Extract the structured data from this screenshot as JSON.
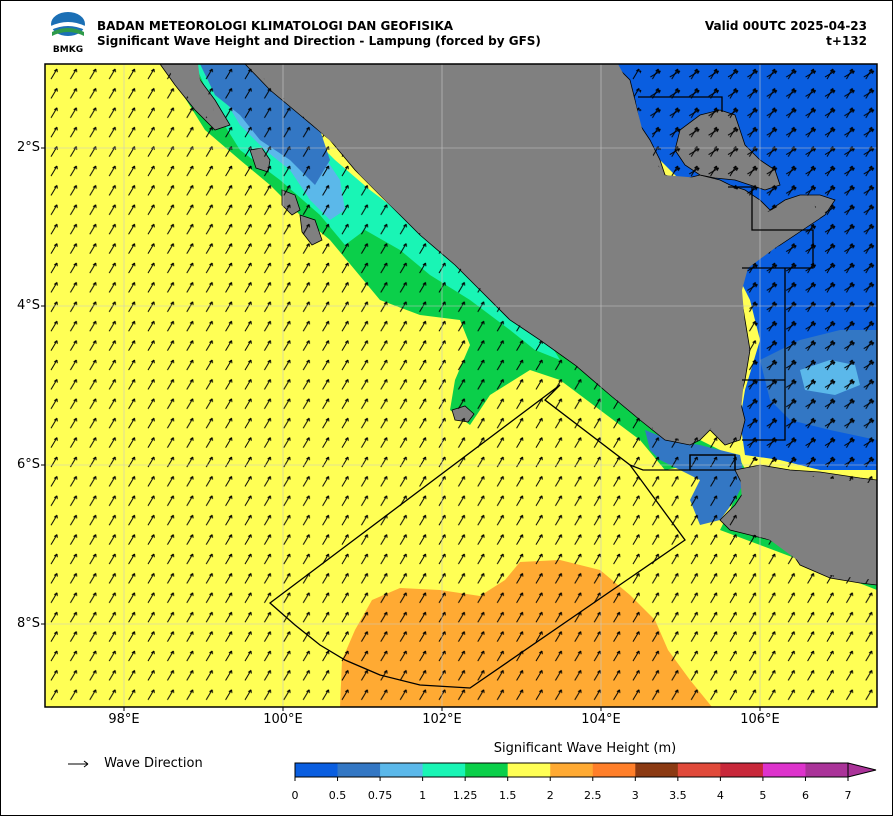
{
  "header": {
    "agency": "BADAN METEOROLOGI KLIMATOLOGI DAN GEOFISIKA",
    "product": "Significant Wave Height and Direction - Lampung (forced by GFS)",
    "valid": "Valid 00UTC 2025-04-23",
    "lead": "t+132",
    "logo_text": "BMKG"
  },
  "axes": {
    "y_labels": [
      "2°S",
      "4°S",
      "6°S",
      "8°S"
    ],
    "x_labels": [
      "98°E",
      "100°E",
      "102°E",
      "104°E",
      "106°E"
    ]
  },
  "legend": {
    "direction_label": "Wave Direction",
    "colorbar_title": "Significant Wave Height (m)",
    "ticks": [
      "0",
      "0.5",
      "0.75",
      "1",
      "1.25",
      "1.5",
      "2",
      "2.5",
      "3",
      "3.5",
      "4",
      "5",
      "6",
      "7"
    ],
    "colors": [
      "#0a5ee0",
      "#3377c4",
      "#5bb8ea",
      "#19f5b5",
      "#0bcf4a",
      "#ffff55",
      "#ffaa33",
      "#ff7f2a",
      "#8b3a13",
      "#e04a3a",
      "#c8283a",
      "#dd33cc",
      "#aa3399"
    ]
  },
  "colors": {
    "land": "#808080",
    "sea_high": "#ffaa33",
    "sea_mid": "#ffff55",
    "sea_low": "#0a5ee0"
  }
}
